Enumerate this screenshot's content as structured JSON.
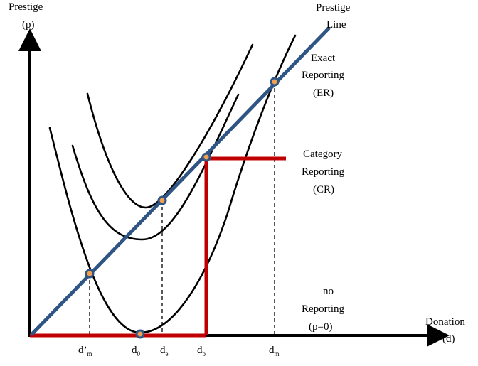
{
  "axes": {
    "y_title_line1": "Prestige",
    "y_title_line2": "(p)",
    "x_title_line1": "Donation",
    "x_title_line2": "(d)"
  },
  "prestige_line": {
    "line1": "Prestige",
    "line2": "Line",
    "color": "#2f5585"
  },
  "regimes": {
    "exact": {
      "line1": "Exact",
      "line2": "Reporting",
      "line3": "(ER)"
    },
    "category": {
      "line1": "Category",
      "line2": "Reporting",
      "line3": "(CR)"
    },
    "none": {
      "line1": "no",
      "line2": "Reporting",
      "line3": "(p=0)"
    }
  },
  "reporting_color": "#c00000",
  "ticks": [
    {
      "id": "dprime_m",
      "base": "d’",
      "sub": "m"
    },
    {
      "id": "d0",
      "base": "d",
      "sub": "0"
    },
    {
      "id": "de",
      "base": "d",
      "sub": "e"
    },
    {
      "id": "db",
      "base": "d",
      "sub": "b"
    },
    {
      "id": "dm",
      "base": "d",
      "sub": "m"
    }
  ]
}
